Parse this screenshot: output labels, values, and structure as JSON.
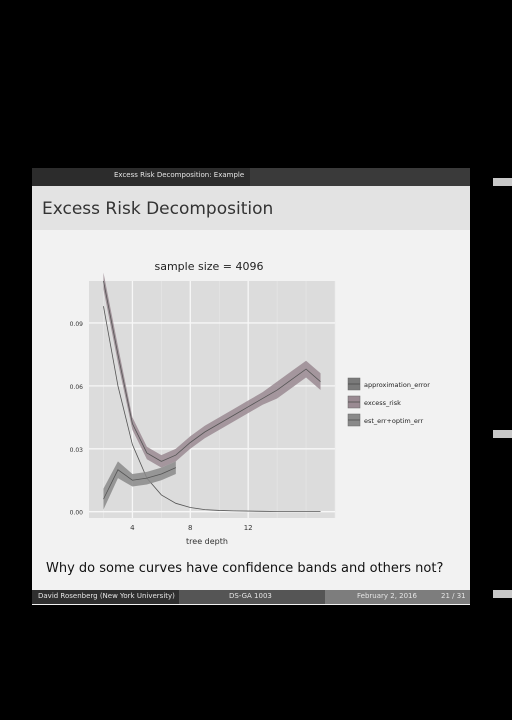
{
  "slide": {
    "header_text": "Excess Risk Decomposition: Example",
    "title": "Excess Risk Decomposition",
    "question": "Why do some curves have confidence bands and others not?",
    "footer": {
      "author": "David Rosenberg (New York University)",
      "course": "DS-GA 1003",
      "date": "February 2, 2016",
      "page": "21 / 31"
    }
  },
  "chart_data": {
    "type": "line",
    "title": "sample size = 4096",
    "xlabel": "tree depth",
    "ylabel": "",
    "xlim": [
      1,
      18
    ],
    "ylim": [
      -0.003,
      0.11
    ],
    "xticks": [
      4,
      8,
      12
    ],
    "yticks": [
      0.0,
      0.03,
      0.06,
      0.09
    ],
    "ytick_labels": [
      "0.00",
      "0.03",
      "0.06",
      "0.09"
    ],
    "grid": true,
    "legend_position": "right",
    "x": [
      2,
      3,
      4,
      5,
      6,
      7,
      8,
      9,
      10,
      11,
      12,
      13,
      14,
      15,
      16,
      17
    ],
    "series": [
      {
        "name": "approximation_error",
        "color": "#7a7a7a",
        "values": [
          0.098,
          0.06,
          0.032,
          0.016,
          0.008,
          0.004,
          0.002,
          0.001,
          0.0006,
          0.0004,
          0.0003,
          0.0002,
          0.0001,
          0.0001,
          0.0001,
          0.0001
        ],
        "band": [
          0.0,
          0.0,
          0.0,
          0.0,
          0.0,
          0.0,
          0.0,
          0.0,
          0.0,
          0.0,
          0.0,
          0.0,
          0.0,
          0.0,
          0.0,
          0.0
        ]
      },
      {
        "name": "excess_risk",
        "color": "#9a8a92",
        "values": [
          0.11,
          0.075,
          0.042,
          0.028,
          0.024,
          0.027,
          0.033,
          0.038,
          0.042,
          0.046,
          0.05,
          0.054,
          0.058,
          0.063,
          0.068,
          0.062
        ],
        "band": [
          0.004,
          0.004,
          0.003,
          0.003,
          0.003,
          0.003,
          0.003,
          0.003,
          0.003,
          0.003,
          0.003,
          0.003,
          0.004,
          0.004,
          0.004,
          0.004
        ]
      },
      {
        "name": "est_err+optim_err",
        "color": "#8a8a8a",
        "values": [
          0.006,
          0.02,
          0.015,
          0.016,
          0.018,
          0.021
        ],
        "x": [
          2,
          3,
          4,
          5,
          6,
          7
        ],
        "band": [
          0.005,
          0.004,
          0.003,
          0.003,
          0.003,
          0.003
        ]
      }
    ]
  }
}
